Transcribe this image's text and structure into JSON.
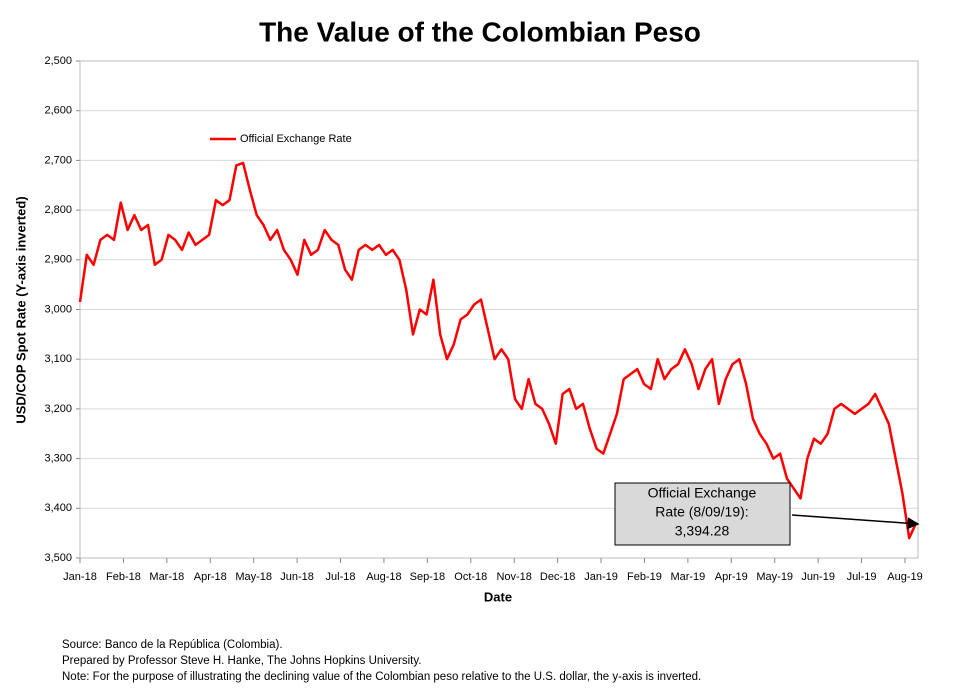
{
  "chart_data": {
    "type": "line",
    "title": "The Value of the Colombian Peso",
    "x_label": "Date",
    "y_label": "USD/COP Spot Rate (Y-axis inverted)",
    "ylim": [
      2500,
      3500
    ],
    "y_inverted": true,
    "grid": true,
    "yticks": [
      {
        "value": 2500,
        "label": "2,500"
      },
      {
        "value": 2600,
        "label": "2,600"
      },
      {
        "value": 2700,
        "label": "2,700"
      },
      {
        "value": 2800,
        "label": "2,800"
      },
      {
        "value": 2900,
        "label": "2,900"
      },
      {
        "value": 3000,
        "label": "3,000"
      },
      {
        "value": 3100,
        "label": "3,100"
      },
      {
        "value": 3200,
        "label": "3,200"
      },
      {
        "value": 3300,
        "label": "3,300"
      },
      {
        "value": 3400,
        "label": "3,400"
      },
      {
        "value": 3500,
        "label": "3,500"
      }
    ],
    "xticks": [
      "Jan-18",
      "Feb-18",
      "Mar-18",
      "Apr-18",
      "May-18",
      "Jun-18",
      "Jul-18",
      "Aug-18",
      "Sep-18",
      "Oct-18",
      "Nov-18",
      "Dec-18",
      "Jan-19",
      "Feb-19",
      "Mar-19",
      "Apr-19",
      "May-19",
      "Jun-19",
      "Jul-19",
      "Aug-19"
    ],
    "legend_position": "upper left",
    "series": [
      {
        "name": "Official Exchange Rate",
        "color": "#ff0000",
        "values": [
          2985,
          2890,
          2910,
          2860,
          2850,
          2860,
          2785,
          2840,
          2810,
          2840,
          2830,
          2910,
          2900,
          2850,
          2860,
          2880,
          2845,
          2870,
          2860,
          2850,
          2780,
          2790,
          2780,
          2710,
          2705,
          2760,
          2810,
          2830,
          2860,
          2840,
          2880,
          2900,
          2930,
          2860,
          2890,
          2880,
          2840,
          2860,
          2870,
          2920,
          2940,
          2880,
          2870,
          2880,
          2870,
          2890,
          2880,
          2900,
          2960,
          3050,
          3000,
          3010,
          2940,
          3050,
          3100,
          3070,
          3020,
          3010,
          2990,
          2980,
          3040,
          3100,
          3080,
          3100,
          3180,
          3200,
          3140,
          3190,
          3200,
          3230,
          3270,
          3170,
          3160,
          3200,
          3190,
          3240,
          3280,
          3290,
          3250,
          3210,
          3140,
          3130,
          3120,
          3150,
          3160,
          3100,
          3140,
          3120,
          3110,
          3080,
          3110,
          3160,
          3120,
          3100,
          3190,
          3140,
          3110,
          3100,
          3150,
          3220,
          3250,
          3270,
          3300,
          3290,
          3340,
          3360,
          3380,
          3300,
          3260,
          3270,
          3250,
          3200,
          3190,
          3200,
          3210,
          3200,
          3190,
          3170,
          3200,
          3230,
          3300,
          3370,
          3460,
          3430
        ]
      }
    ],
    "annotation": {
      "lines": [
        "Official Exchange",
        "Rate (8/09/19):",
        "3,394.28"
      ]
    },
    "notes": [
      "Source: Banco de la República (Colombia).",
      "Prepared by Professor Steve H. Hanke, The Johns Hopkins University.",
      "Note: For the purpose of illustrating the declining value of the Colombian peso relative to the U.S. dollar, the y-axis is inverted."
    ]
  }
}
